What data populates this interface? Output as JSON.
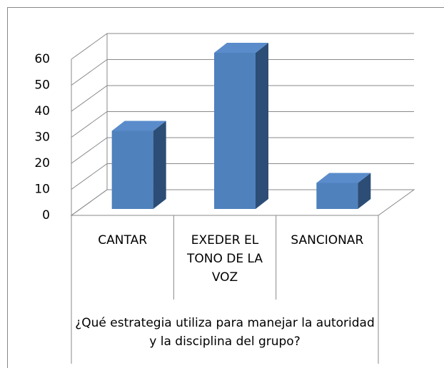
{
  "chart_data": {
    "type": "bar3d",
    "x_label": "¿Qué estrategia utiliza para manejar la autoridad y la disciplina del grupo?",
    "categories": [
      "CANTAR",
      "EXEDER EL TONO DE LA VOZ",
      "SANCIONAR"
    ],
    "values": [
      30,
      60,
      10
    ],
    "color": "#4f81bd",
    "ylim": [
      0,
      60
    ],
    "yticks": [
      0,
      10,
      20,
      30,
      40,
      50,
      60
    ],
    "grid": true
  }
}
